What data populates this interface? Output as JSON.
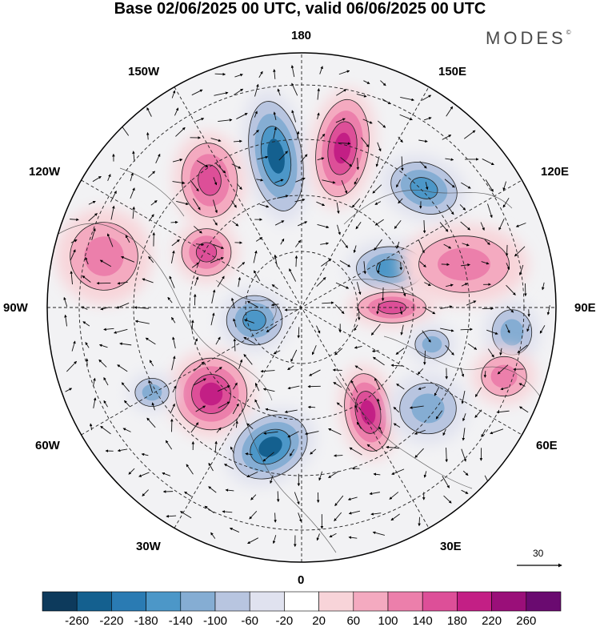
{
  "title": "Base 02/06/2025 00 UTC, valid 06/06/2025 00 UTC",
  "brand": "MODES",
  "brand_mark": "©",
  "longitude_labels": {
    "top": "180",
    "bottom": "0",
    "left": "90W",
    "right": "90E",
    "nw150": "150W",
    "nw120": "120W",
    "ne150": "150E",
    "ne120": "120E",
    "sw60": "60W",
    "sw30": "30W",
    "se60": "60E",
    "se30": "30E"
  },
  "reference_vector": "30",
  "colorbar": {
    "ticks": [
      "-260",
      "-220",
      "-180",
      "-140",
      "-100",
      "-60",
      "-20",
      "20",
      "60",
      "100",
      "140",
      "180",
      "220",
      "260"
    ],
    "colors": [
      "#0d3a5c",
      "#14608f",
      "#2a7bb3",
      "#4c97c8",
      "#85add3",
      "#b8c5e0",
      "#e0e2ef",
      "#ffffff",
      "#f8d4d9",
      "#f4aac0",
      "#ec7fab",
      "#dd4f98",
      "#c31f85",
      "#9a0f79",
      "#6a0a70"
    ]
  },
  "anomaly_centers": [
    {
      "sign": "neg",
      "level": 3
    },
    {
      "sign": "pos",
      "level": 3
    },
    {
      "sign": "neg",
      "level": 2
    },
    {
      "sign": "pos",
      "level": 2
    },
    {
      "sign": "neg",
      "level": 2
    },
    {
      "sign": "pos",
      "level": 2
    },
    {
      "sign": "pos",
      "level": 3
    },
    {
      "sign": "neg",
      "level": 3
    },
    {
      "sign": "pos",
      "level": 3
    },
    {
      "sign": "neg",
      "level": 2
    },
    {
      "sign": "pos",
      "level": 2
    },
    {
      "sign": "neg",
      "level": 1
    },
    {
      "sign": "neg",
      "level": 1
    },
    {
      "sign": "pos",
      "level": 1
    },
    {
      "sign": "pos",
      "level": 1
    },
    {
      "sign": "neg",
      "level": 1
    },
    {
      "sign": "neg",
      "level": 1
    },
    {
      "sign": "pos",
      "level": 1
    }
  ]
}
